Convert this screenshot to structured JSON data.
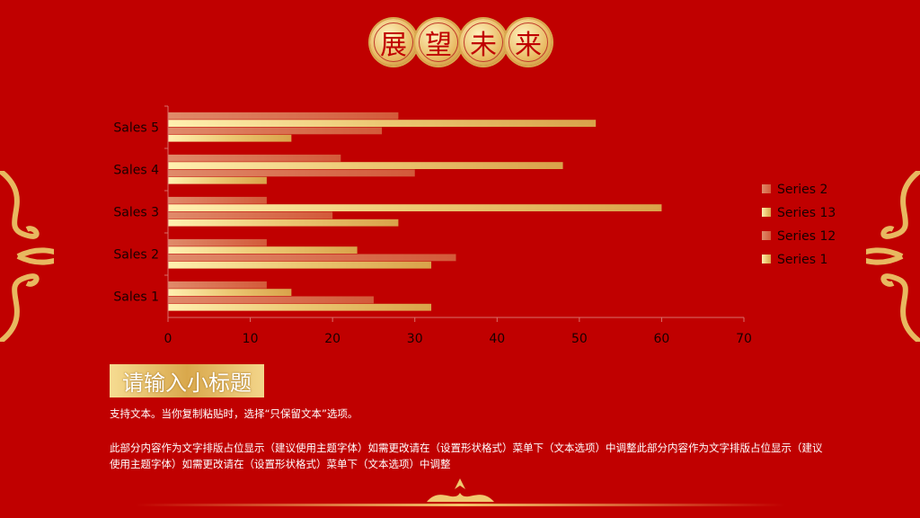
{
  "title": [
    "展",
    "望",
    "未",
    "来"
  ],
  "subtitle": "请输入小标题",
  "paragraph1": "支持文本。当你复制粘贴时，选择“只保留文本”选项。",
  "paragraph2": "此部分内容作为文字排版占位显示（建议使用主题字体）如需更改请在（设置形状格式）菜单下（文本选项）中调整此部分内容作为文字排版占位显示（建议使用主题字体）如需更改请在（设置形状格式）菜单下（文本选项）中调整",
  "colors": {
    "background": "#c00000",
    "gold": "#e8c070",
    "copper": "#d9684a"
  },
  "chart_data": {
    "type": "bar",
    "orientation": "horizontal",
    "categories": [
      "Sales 1",
      "Sales 2",
      "Sales 3",
      "Sales 4",
      "Sales 5"
    ],
    "series": [
      {
        "name": "Series 2",
        "values": [
          12,
          12,
          12,
          21,
          28
        ],
        "color": "#d9684a"
      },
      {
        "name": "Series 13",
        "values": [
          15,
          23,
          60,
          48,
          52
        ],
        "color": "#f0cc78"
      },
      {
        "name": "Series 12",
        "values": [
          25,
          35,
          20,
          30,
          26
        ],
        "color": "#d9684a"
      },
      {
        "name": "Series 1",
        "values": [
          32,
          32,
          28,
          12,
          15
        ],
        "color": "#f0cc78"
      }
    ],
    "xlim": [
      0,
      70
    ],
    "xticks": [
      "0",
      "10",
      "20",
      "30",
      "40",
      "50",
      "60",
      "70"
    ],
    "grid": false,
    "legend": "right"
  }
}
